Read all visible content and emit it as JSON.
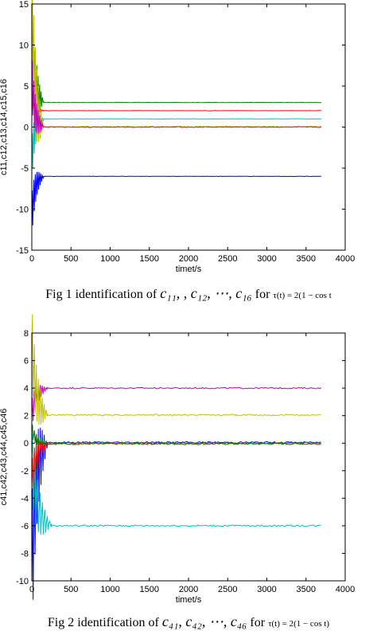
{
  "chart_data": [
    {
      "type": "line",
      "title": "",
      "xlabel": "timet/s",
      "ylabel": "c11,c12,c13,c14,c15,c16",
      "xlim": [
        0,
        4000
      ],
      "ylim": [
        -15,
        15
      ],
      "xticks": [
        0,
        500,
        1000,
        1500,
        2000,
        2500,
        3000,
        3500,
        4000
      ],
      "yticks": [
        -15,
        -10,
        -5,
        0,
        5,
        10,
        15
      ],
      "grid": false,
      "legend": "none",
      "series": [
        {
          "color": "#008000",
          "start": [
            0,
            12.5
          ],
          "transient_end": 150,
          "steady": 3.0,
          "noise": 0.02
        },
        {
          "color": "#ff0000",
          "start": [
            0,
            3.0
          ],
          "transient_end": 150,
          "steady": 2.0,
          "noise": 0.02
        },
        {
          "color": "#00bfbf",
          "start": [
            0,
            -4.0
          ],
          "transient_end": 150,
          "steady": 1.0,
          "noise": 0.02
        },
        {
          "color": "#bfbf00",
          "start": [
            0,
            14.5
          ],
          "transient_end": 150,
          "steady": 0.05,
          "noise": 0.06
        },
        {
          "color": "#bf00bf",
          "start": [
            0,
            6.0
          ],
          "transient_end": 150,
          "steady": 0.0,
          "noise": 0.05
        },
        {
          "color": "#0000ff",
          "start": [
            0,
            -11.0
          ],
          "transient_end": 150,
          "steady": -6.0,
          "noise": 0.02
        }
      ],
      "caption": {
        "prefix": "Fig 1 identification of",
        "math": "c₁₁, , c₁₂, ⋯, c₁₆",
        "for": "for",
        "tau": "τ(t) = 2(1 − cos t"
      }
    },
    {
      "type": "line",
      "title": "",
      "xlabel": "timet/s",
      "ylabel": "c41,c42,c43,c44,c45,c46",
      "xlim": [
        0,
        4000
      ],
      "ylim": [
        -10,
        8
      ],
      "xticks": [
        0,
        500,
        1000,
        1500,
        2000,
        2500,
        3000,
        3500,
        4000
      ],
      "yticks": [
        -10,
        -8,
        -6,
        -4,
        -2,
        0,
        2,
        4,
        6,
        8
      ],
      "grid": false,
      "legend": "none",
      "series": [
        {
          "color": "#bf00bf",
          "start": [
            0,
            2.0
          ],
          "transient_end": 200,
          "steady": 4.0,
          "noise": 0.05
        },
        {
          "color": "#bfbf00",
          "start": [
            0,
            7.5
          ],
          "transient_end": 200,
          "steady": 2.05,
          "noise": 0.05
        },
        {
          "color": "#0000ff",
          "start": [
            0,
            -9.5
          ],
          "transient_end": 200,
          "steady": 0.05,
          "noise": 0.06
        },
        {
          "color": "#ff0000",
          "start": [
            0,
            -3.0
          ],
          "transient_end": 200,
          "steady": -0.05,
          "noise": 0.06
        },
        {
          "color": "#008000",
          "start": [
            0,
            1.0
          ],
          "transient_end": 200,
          "steady": 0.0,
          "noise": 0.06
        },
        {
          "color": "#00bfbf",
          "start": [
            0,
            -1.0
          ],
          "transient_end": 250,
          "steady": -6.0,
          "noise": 0.06
        }
      ],
      "caption": {
        "prefix": "Fig 2 identification of",
        "math": "c₄₁, c₄₂, ⋯, c₄₆",
        "for": "for",
        "tau": "τ(t) = 2(1 − cos t)"
      }
    }
  ]
}
